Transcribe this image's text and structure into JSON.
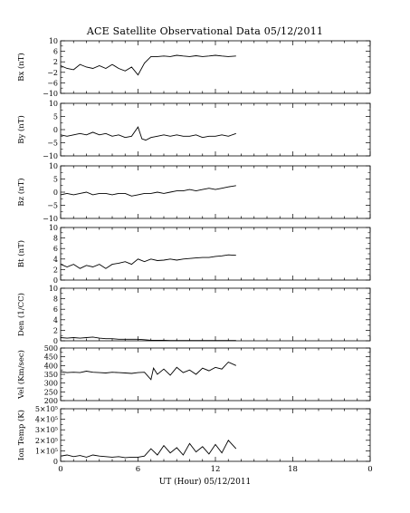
{
  "title": "ACE Satellite Observational Data   05/12/2011",
  "chart_data": {
    "type": "line",
    "title": "ACE Satellite Observational Data   05/12/2011",
    "xlabel": "UT (Hour)  05/12/2011",
    "x_ticks": [
      "0",
      "6",
      "12",
      "18",
      "0"
    ],
    "x_tick_values": [
      0,
      6,
      12,
      18,
      24
    ],
    "xlim": [
      0,
      24
    ],
    "data_end_hour": 13.6,
    "grid": false,
    "panels": [
      {
        "ylabel": "Bx (nT)",
        "ylim": [
          -10,
          10
        ],
        "y_ticks": [
          -10,
          -6,
          -2,
          2,
          6,
          10
        ],
        "y_tick_labels": [
          "−10",
          "−6",
          "−2",
          "2",
          "6",
          "10"
        ],
        "series": {
          "x": [
            0,
            0.5,
            1,
            1.5,
            2,
            2.5,
            3,
            3.5,
            4,
            4.5,
            5,
            5.5,
            6,
            6.5,
            7,
            7.5,
            8,
            8.5,
            9,
            9.5,
            10,
            10.5,
            11,
            11.5,
            12,
            12.5,
            13,
            13.6
          ],
          "values": [
            0.5,
            -0.5,
            -1.0,
            1.0,
            0.0,
            -0.5,
            0.5,
            -0.5,
            1.0,
            -0.5,
            -1.5,
            0.0,
            -3.0,
            1.5,
            4.0,
            4.0,
            4.2,
            4.0,
            4.5,
            4.2,
            4.0,
            4.3,
            4.0,
            4.2,
            4.5,
            4.2,
            4.0,
            4.2
          ]
        }
      },
      {
        "ylabel": "By (nT)",
        "ylim": [
          -10,
          10
        ],
        "y_ticks": [
          -10,
          -5,
          0,
          5,
          10
        ],
        "y_tick_labels": [
          "−10",
          "−5",
          "0",
          "5",
          "10"
        ],
        "series": {
          "x": [
            0,
            0.5,
            1,
            1.5,
            2,
            2.5,
            3,
            3.5,
            4,
            4.5,
            5,
            5.5,
            6,
            6.3,
            6.6,
            7,
            7.5,
            8,
            8.5,
            9,
            9.5,
            10,
            10.5,
            11,
            11.5,
            12,
            12.5,
            13,
            13.6
          ],
          "values": [
            -2.0,
            -2.5,
            -2.0,
            -1.5,
            -2.0,
            -1.0,
            -2.0,
            -1.5,
            -2.5,
            -2.0,
            -3.0,
            -2.5,
            1.0,
            -3.5,
            -4.0,
            -3.0,
            -2.5,
            -2.0,
            -2.5,
            -2.0,
            -2.5,
            -2.5,
            -2.0,
            -3.0,
            -2.5,
            -2.5,
            -2.0,
            -2.5,
            -1.5
          ]
        }
      },
      {
        "ylabel": "Bz (nT)",
        "ylim": [
          -10,
          10
        ],
        "y_ticks": [
          -10,
          -5,
          0,
          5,
          10
        ],
        "y_tick_labels": [
          "−10",
          "−5",
          "0",
          "5",
          "10"
        ],
        "series": {
          "x": [
            0,
            0.5,
            1,
            1.5,
            2,
            2.5,
            3,
            3.5,
            4,
            4.5,
            5,
            5.5,
            6,
            6.5,
            7,
            7.5,
            8,
            8.5,
            9,
            9.5,
            10,
            10.5,
            11,
            11.5,
            12,
            12.5,
            13,
            13.6
          ],
          "values": [
            -1.0,
            -0.5,
            -1.0,
            -0.5,
            0.0,
            -1.0,
            -0.5,
            -0.5,
            -1.0,
            -0.5,
            -0.5,
            -1.5,
            -1.0,
            -0.5,
            -0.5,
            0.0,
            -0.5,
            0.0,
            0.5,
            0.5,
            1.0,
            0.5,
            1.0,
            1.5,
            1.0,
            1.5,
            2.0,
            2.5
          ]
        }
      },
      {
        "ylabel": "Bt (nT)",
        "ylim": [
          0,
          10
        ],
        "y_ticks": [
          0,
          2,
          4,
          6,
          8,
          10
        ],
        "y_tick_labels": [
          "0",
          "2",
          "4",
          "6",
          "8",
          "10"
        ],
        "series": {
          "x": [
            0,
            0.5,
            1,
            1.5,
            2,
            2.5,
            3,
            3.5,
            4,
            4.5,
            5,
            5.5,
            6,
            6.5,
            7,
            7.5,
            8,
            8.5,
            9,
            9.5,
            10,
            10.5,
            11,
            11.5,
            12,
            12.5,
            13,
            13.6
          ],
          "values": [
            3.0,
            2.5,
            3.0,
            2.2,
            2.8,
            2.5,
            3.0,
            2.2,
            3.0,
            3.2,
            3.5,
            3.0,
            4.0,
            3.5,
            4.0,
            3.7,
            3.8,
            4.0,
            3.8,
            4.0,
            4.1,
            4.2,
            4.3,
            4.3,
            4.5,
            4.6,
            4.8,
            4.7
          ]
        }
      },
      {
        "ylabel": "Den (1/CC)",
        "ylim": [
          0,
          10
        ],
        "y_ticks": [
          0,
          2,
          4,
          6,
          8,
          10
        ],
        "y_tick_labels": [
          "0",
          "2",
          "4",
          "6",
          "8",
          "10"
        ],
        "series": {
          "x": [
            0,
            0.5,
            1,
            1.5,
            2,
            2.5,
            3,
            3.5,
            4,
            4.5,
            5,
            5.5,
            6,
            6.5,
            7,
            7.5,
            8,
            8.5,
            9,
            9.5,
            10,
            10.5,
            11,
            11.5,
            12,
            12.5,
            13,
            13.6
          ],
          "values": [
            0.6,
            0.5,
            0.6,
            0.5,
            0.6,
            0.7,
            0.5,
            0.4,
            0.4,
            0.3,
            0.3,
            0.3,
            0.3,
            0.2,
            0.1,
            0.1,
            0.1,
            0.05,
            0.05,
            0.05,
            0.05,
            0.05,
            0.05,
            0.05,
            0.05,
            0.05,
            0.05,
            0.05
          ]
        }
      },
      {
        "ylabel": "Vel (Km/sec)",
        "ylim": [
          200,
          500
        ],
        "y_ticks": [
          200,
          250,
          300,
          350,
          400,
          450,
          500
        ],
        "y_tick_labels": [
          "200",
          "250",
          "300",
          "350",
          "400",
          "450",
          "500"
        ],
        "series": {
          "x": [
            0,
            0.5,
            1,
            1.5,
            2,
            2.5,
            3,
            3.5,
            4,
            4.5,
            5,
            5.5,
            6,
            6.5,
            7,
            7.2,
            7.5,
            8,
            8.5,
            9,
            9.5,
            10,
            10.5,
            11,
            11.5,
            12,
            12.5,
            13,
            13.6
          ],
          "values": [
            365,
            360,
            362,
            360,
            368,
            362,
            360,
            358,
            362,
            360,
            358,
            355,
            360,
            362,
            320,
            385,
            350,
            380,
            345,
            390,
            360,
            375,
            350,
            385,
            370,
            390,
            380,
            420,
            400
          ]
        }
      },
      {
        "ylabel": "Ion Temp (K)",
        "ylim": [
          0,
          500000
        ],
        "y_ticks": [
          0,
          100000,
          200000,
          300000,
          400000,
          500000
        ],
        "y_tick_labels": [
          "0",
          "1×10⁵",
          "2×10⁵",
          "3×10⁵",
          "4×10⁵",
          "5×10⁵"
        ],
        "series": {
          "x": [
            0,
            0.5,
            1,
            1.5,
            2,
            2.5,
            3,
            3.5,
            4,
            4.5,
            5,
            5.5,
            6,
            6.5,
            7,
            7.5,
            8,
            8.5,
            9,
            9.5,
            10,
            10.5,
            11,
            11.5,
            12,
            12.5,
            13,
            13.6
          ],
          "values": [
            50000,
            60000,
            45000,
            55000,
            40000,
            60000,
            50000,
            45000,
            40000,
            45000,
            35000,
            40000,
            40000,
            50000,
            120000,
            60000,
            150000,
            80000,
            130000,
            60000,
            170000,
            90000,
            140000,
            70000,
            160000,
            80000,
            200000,
            120000
          ]
        }
      }
    ]
  }
}
